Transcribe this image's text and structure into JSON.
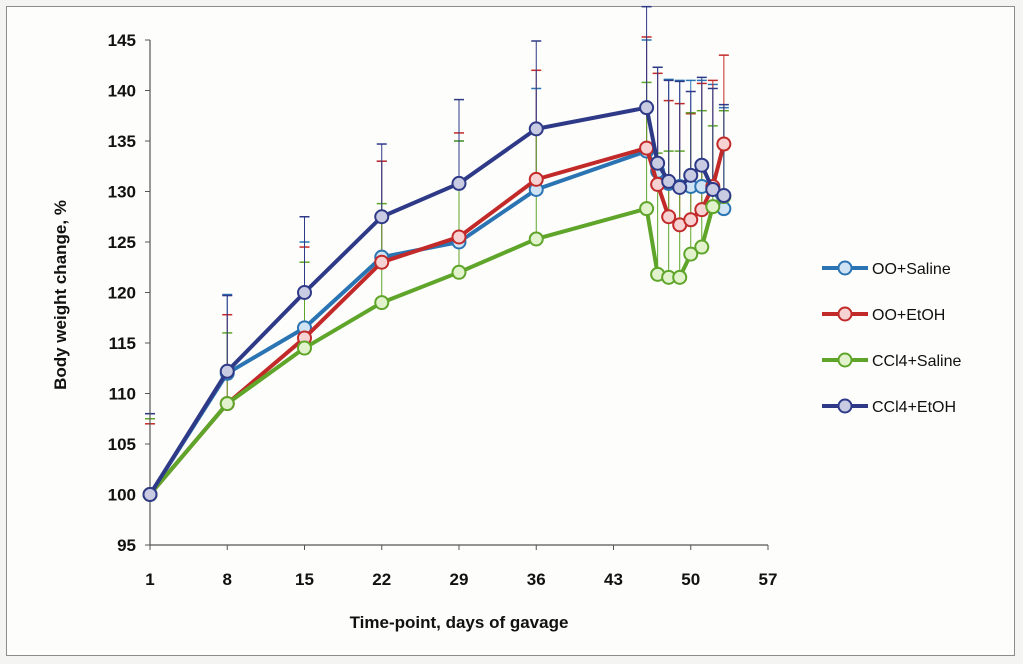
{
  "chart_data": {
    "type": "line",
    "title": "",
    "xlabel": "Time-point, days of gavage",
    "ylabel": "Body weight change, %",
    "xlim": [
      1,
      57
    ],
    "ylim": [
      95,
      145
    ],
    "xticks": [
      1,
      8,
      15,
      22,
      29,
      36,
      43,
      50,
      57
    ],
    "yticks": [
      95,
      100,
      105,
      110,
      115,
      120,
      125,
      130,
      135,
      140,
      145
    ],
    "legend_position": "right",
    "grid": false,
    "series": [
      {
        "name": "OO+Saline",
        "color": "#2b74b3",
        "marker_fill": "#cfe3f4",
        "x": [
          1,
          8,
          15,
          22,
          29,
          36,
          46,
          47,
          48,
          49,
          50,
          51,
          52,
          53
        ],
        "y": [
          100,
          112,
          116.5,
          123.5,
          125,
          130.2,
          134,
          132,
          130.8,
          130.5,
          130.5,
          130.5,
          130.3,
          128.3
        ],
        "err": [
          8,
          7.8,
          8.5,
          9.5,
          10,
          10,
          11,
          10.3,
          10.3,
          10.5,
          10.5,
          10.5,
          10.3,
          10
        ]
      },
      {
        "name": "OO+EtOH",
        "color": "#c22a2a",
        "marker_fill": "#f6d2d2",
        "x": [
          1,
          8,
          15,
          22,
          29,
          36,
          46,
          47,
          48,
          49,
          50,
          51,
          52,
          53
        ],
        "y": [
          100,
          109,
          115.5,
          123,
          125.5,
          131.2,
          134.3,
          130.7,
          127.5,
          126.7,
          127.2,
          128.2,
          130.5,
          134.7
        ],
        "err": [
          7,
          8.8,
          9,
          10,
          10.3,
          10.8,
          11,
          11,
          11.5,
          12,
          10.5,
          12.5,
          10.5,
          8.8
        ]
      },
      {
        "name": "CCl4+Saline",
        "color": "#5ea52a",
        "marker_fill": "#e2f2cc",
        "x": [
          1,
          8,
          15,
          22,
          29,
          36,
          46,
          47,
          48,
          49,
          50,
          51,
          52,
          53
        ],
        "y": [
          100,
          109,
          114.5,
          119,
          122,
          125.3,
          128.3,
          121.8,
          121.5,
          121.5,
          123.8,
          124.5,
          128.5,
          129.5
        ],
        "err": [
          7.5,
          7,
          8.5,
          9.8,
          13,
          10.5,
          12.5,
          12,
          12.5,
          12.5,
          14,
          13.5,
          8,
          8.5
        ]
      },
      {
        "name": "CCl4+EtOH",
        "color": "#2e3a87",
        "marker_fill": "#c9cbe3",
        "x": [
          1,
          8,
          15,
          22,
          29,
          36,
          46,
          47,
          48,
          49,
          50,
          51,
          52,
          53
        ],
        "y": [
          100,
          112.2,
          120,
          127.5,
          130.8,
          136.2,
          138.3,
          132.8,
          131,
          130.4,
          131.6,
          132.6,
          130.2,
          129.6
        ],
        "err": [
          8,
          7.5,
          7.5,
          7.2,
          8.3,
          8.7,
          10,
          9.5,
          10,
          10.5,
          8.3,
          8.7,
          10,
          9
        ]
      }
    ]
  }
}
